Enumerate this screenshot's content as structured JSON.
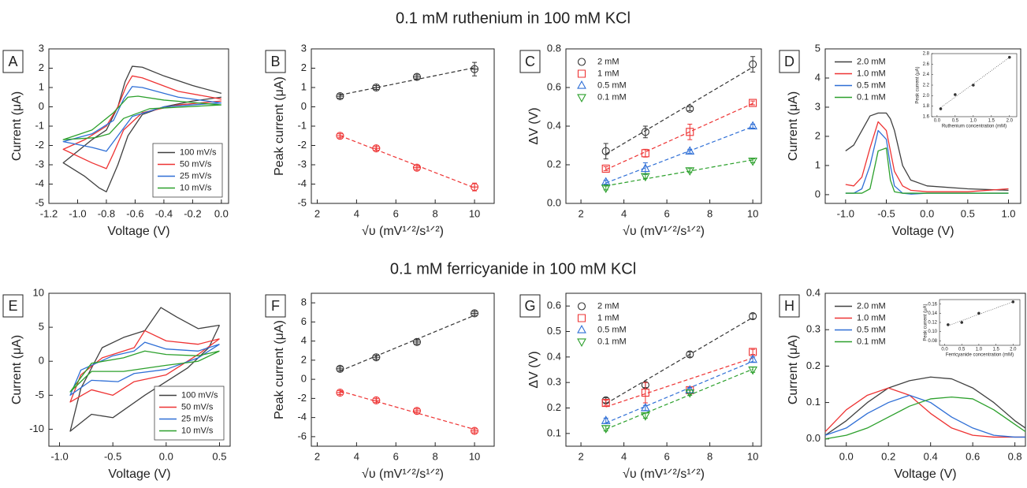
{
  "headings": [
    "0.1 mM ruthenium in 100 mM KCl",
    "0.1 mM ferricyanide in 100 mM KCl"
  ],
  "chart_data": [
    {
      "type": "line",
      "panel_label": "A",
      "x_label": "Voltage (V)",
      "y_label": "Current (μA)",
      "xlim": [
        -1.2,
        0.05
      ],
      "xticks": [
        -1.2,
        {
          "value": -1,
          "label": "-1.0"
        },
        -0.8,
        -0.6,
        -0.4,
        -0.2,
        {
          "value": 0,
          "label": "0.0"
        }
      ],
      "ylim": [
        -5,
        3
      ],
      "yticks": [
        -5,
        -4,
        -3,
        -2,
        -1,
        0,
        1,
        2,
        3
      ],
      "legend": "lower right",
      "legend_box": true,
      "series": [
        {
          "name": "100 mV/s",
          "color": "#404040",
          "x": [
            0,
            -0.2,
            -0.4,
            -0.55,
            -0.65,
            -0.72,
            -0.8,
            -0.85,
            -0.95,
            -1.1,
            -1.0,
            -0.9,
            -0.8,
            -0.72,
            -0.67,
            -0.62,
            -0.55,
            -0.4,
            -0.2,
            0
          ],
          "values": [
            0.5,
            0.3,
            0,
            -0.4,
            -1.5,
            -3,
            -4.4,
            -4.2,
            -3.6,
            -2.9,
            -2.3,
            -1.7,
            -1.2,
            0,
            1.3,
            2.1,
            2.05,
            1.6,
            1.1,
            0.7
          ]
        },
        {
          "name": "50 mV/s",
          "color": "#ee3333",
          "x": [
            0,
            -0.3,
            -0.55,
            -0.68,
            -0.75,
            -0.8,
            -0.9,
            -1.1,
            -0.95,
            -0.8,
            -0.72,
            -0.66,
            -0.62,
            -0.55,
            -0.3,
            0
          ],
          "values": [
            0.3,
            0.1,
            -0.3,
            -1.2,
            -2.4,
            -3.2,
            -2.9,
            -2.2,
            -1.7,
            -1.0,
            0,
            1.1,
            1.6,
            1.5,
            0.8,
            0.4
          ]
        },
        {
          "name": "25 mV/s",
          "color": "#2f6fd6",
          "x": [
            0,
            -0.4,
            -0.62,
            -0.72,
            -0.8,
            -0.9,
            -1.1,
            -0.9,
            -0.75,
            -0.68,
            -0.62,
            -0.55,
            -0.3,
            0
          ],
          "values": [
            0.2,
            0,
            -0.5,
            -1.5,
            -2.3,
            -2.1,
            -1.8,
            -1.4,
            -0.7,
            0.4,
            1.05,
            1.0,
            0.5,
            0.2
          ]
        },
        {
          "name": "10 mV/s",
          "color": "#2ca02c",
          "x": [
            0,
            -0.5,
            -0.68,
            -0.78,
            -0.88,
            -1.1,
            -0.9,
            -0.75,
            -0.65,
            -0.58,
            -0.4,
            0
          ],
          "values": [
            0.1,
            -0.1,
            -0.6,
            -1.4,
            -1.6,
            -1.7,
            -1.2,
            -0.3,
            0.5,
            0.55,
            0.35,
            0.1
          ]
        }
      ]
    },
    {
      "type": "scatter",
      "panel_label": "B",
      "x_label": "√υ (mV¹ᐟ²/s¹ᐟ²)",
      "y_label": "Peak current (μA)",
      "xlim": [
        1.7,
        11
      ],
      "xticks": [
        2,
        4,
        6,
        8,
        10
      ],
      "ylim": [
        -5,
        3
      ],
      "yticks": [
        -5,
        -4,
        -3,
        -2,
        -1,
        0,
        1,
        2,
        3
      ],
      "x": [
        3.16,
        5,
        7.07,
        10
      ],
      "fit": "dashed",
      "series": [
        {
          "color": "#333333",
          "marker": "circle-cross",
          "values": [
            0.55,
            1.0,
            1.55,
            1.95
          ],
          "errors": [
            0.1,
            0.1,
            0.1,
            0.35
          ]
        },
        {
          "color": "#ee3333",
          "marker": "circle-cross",
          "values": [
            -1.5,
            -2.15,
            -3.15,
            -4.15
          ],
          "errors": [
            0.1,
            0.1,
            0.1,
            0.2
          ]
        }
      ]
    },
    {
      "type": "scatter",
      "panel_label": "C",
      "x_label": "√υ (mV¹ᐟ²/s¹ᐟ²)",
      "y_label": "ΔV (V)",
      "xlim": [
        1.3,
        10.4
      ],
      "xticks": [
        2,
        4,
        6,
        8,
        10
      ],
      "ylim": [
        0,
        0.8
      ],
      "yticks": [
        {
          "value": 0,
          "label": "0.0"
        },
        0.2,
        0.4,
        0.6,
        0.8
      ],
      "x": [
        3.16,
        5,
        7.07,
        10
      ],
      "fit": "dashed",
      "legend": "upper left",
      "series": [
        {
          "name": "2 mM",
          "color": "#333333",
          "marker": "circle",
          "values": [
            0.27,
            0.37,
            0.49,
            0.72
          ],
          "errors": [
            0.04,
            0.03,
            0.01,
            0.04
          ]
        },
        {
          "name": "1 mM",
          "color": "#ee3333",
          "marker": "square",
          "values": [
            0.18,
            0.26,
            0.37,
            0.52
          ],
          "errors": [
            0.01,
            0.02,
            0.04,
            0.01
          ]
        },
        {
          "name": "0.5 mM",
          "color": "#2f6fd6",
          "marker": "triangle",
          "values": [
            0.11,
            0.18,
            0.27,
            0.4
          ],
          "errors": [
            0.01,
            0.03,
            0.01,
            0.01
          ]
        },
        {
          "name": "0.1 mM",
          "color": "#2ca02c",
          "marker": "triangle-down",
          "values": [
            0.08,
            0.14,
            0.17,
            0.22
          ],
          "errors": [
            0.01,
            0.01,
            0.01,
            0.01
          ]
        }
      ]
    },
    {
      "type": "line",
      "panel_label": "D",
      "x_label": "Voltage (V)",
      "y_label": "Current (μA)",
      "xlim": [
        -1.25,
        1.15
      ],
      "xticks": [
        {
          "value": -1,
          "label": "-1.0"
        },
        -0.5,
        {
          "value": 0,
          "label": "0.0"
        },
        0.5,
        {
          "value": 1,
          "label": "1.0"
        }
      ],
      "ylim": [
        -0.3,
        5
      ],
      "yticks": [
        0,
        1,
        2,
        3,
        4,
        5
      ],
      "legend": "upper left",
      "x": [
        -1.0,
        -0.9,
        -0.8,
        -0.7,
        -0.6,
        -0.5,
        -0.45,
        -0.4,
        -0.3,
        -0.2,
        0,
        0.5,
        1.0
      ],
      "series": [
        {
          "name": "2.0 mM",
          "color": "#404040",
          "values": [
            1.5,
            1.7,
            2.2,
            2.7,
            2.8,
            2.8,
            2.6,
            2.2,
            1.0,
            0.5,
            0.3,
            0.2,
            0.15
          ]
        },
        {
          "name": "1.0 mM",
          "color": "#ee3333",
          "values": [
            0.35,
            0.3,
            0.6,
            1.6,
            2.5,
            2.2,
            1.5,
            0.8,
            0.3,
            0.15,
            0.1,
            0.1,
            0.2
          ]
        },
        {
          "name": "0.5 mM",
          "color": "#2f6fd6",
          "values": [
            0.05,
            0.05,
            0.2,
            1.0,
            2.2,
            1.9,
            1.0,
            0.3,
            0.05,
            0.02,
            0.05,
            0.05,
            0.05
          ]
        },
        {
          "name": "0.1 mM",
          "color": "#2ca02c",
          "values": [
            0.05,
            0.05,
            0.05,
            0.2,
            1.5,
            1.6,
            0.5,
            0.1,
            0.05,
            0.05,
            0.05,
            0.05,
            0.05
          ]
        }
      ],
      "inset": {
        "type": "scatter",
        "x_label": "Ruthenium concentration (mM)",
        "y_label": "Peak current (μA)",
        "xlim": [
          -0.15,
          2.2
        ],
        "xticks": [
          {
            "value": 0,
            "label": "0.0"
          },
          0.5,
          {
            "value": 1,
            "label": "1.0"
          },
          1.5,
          {
            "value": 2,
            "label": "2.0"
          }
        ],
        "ylim": [
          1.6,
          2.8
        ],
        "yticks": [
          1.6,
          1.8,
          {
            "value": 2,
            "label": "2.0"
          },
          2.2,
          2.4,
          2.6,
          2.8
        ],
        "x": [
          0.1,
          0.5,
          1.0,
          2.0
        ],
        "fit": "dotted",
        "series": [
          {
            "color": "#333333",
            "marker": "circle",
            "values": [
              1.75,
              2.02,
              2.2,
              2.73
            ]
          }
        ]
      }
    },
    {
      "type": "line",
      "panel_label": "E",
      "x_label": "Voltage (V)",
      "y_label": "Current (μA)",
      "xlim": [
        -1.1,
        0.6
      ],
      "xticks": [
        {
          "value": -1,
          "label": "-1.0"
        },
        -0.5,
        {
          "value": 0,
          "label": "0.0"
        },
        0.5
      ],
      "ylim": [
        -12.5,
        10
      ],
      "yticks": [
        -10,
        -5,
        0,
        5,
        10
      ],
      "legend": "lower right",
      "legend_box": true,
      "series": [
        {
          "name": "100 mV/s",
          "color": "#404040",
          "x": [
            0.5,
            0.4,
            0.2,
            0,
            -0.2,
            -0.5,
            -0.7,
            -0.9,
            -0.8,
            -0.6,
            -0.4,
            -0.2,
            -0.05,
            0.1,
            0.3,
            0.5
          ],
          "values": [
            5.3,
            2.0,
            -1.0,
            -3,
            -5,
            -8.3,
            -7.8,
            -10.3,
            -4,
            2,
            3.5,
            4.5,
            7.9,
            6.5,
            4.8,
            5.3
          ]
        },
        {
          "name": "50 mV/s",
          "color": "#ee3333",
          "x": [
            0.5,
            0.3,
            0,
            -0.3,
            -0.5,
            -0.7,
            -0.9,
            -0.8,
            -0.6,
            -0.3,
            -0.2,
            0,
            0.3,
            0.5
          ],
          "values": [
            3.3,
            1.0,
            -2,
            -3,
            -5,
            -4.2,
            -6,
            -2,
            0.5,
            2,
            4.5,
            3,
            2.5,
            3.3
          ]
        },
        {
          "name": "25 mV/s",
          "color": "#2f6fd6",
          "x": [
            0.5,
            0.3,
            0,
            -0.3,
            -0.45,
            -0.7,
            -0.9,
            -0.8,
            -0.5,
            -0.3,
            -0.2,
            0,
            0.3,
            0.5
          ],
          "values": [
            2.5,
            0.5,
            -1.2,
            -1.8,
            -3,
            -2.8,
            -5,
            -1.3,
            0.8,
            1.5,
            2.8,
            1.8,
            1.5,
            2.5
          ]
        },
        {
          "name": "10 mV/s",
          "color": "#2ca02c",
          "x": [
            0.5,
            0.3,
            0,
            -0.4,
            -0.7,
            -0.9,
            -0.7,
            -0.4,
            -0.2,
            0,
            0.3,
            0.5
          ],
          "values": [
            1.5,
            0,
            -0.6,
            -1.5,
            -1.5,
            -4.5,
            -0.3,
            0.5,
            1.5,
            1,
            0.8,
            1.5
          ]
        }
      ]
    },
    {
      "type": "scatter",
      "panel_label": "F",
      "x_label": "√υ (mV¹ᐟ²/s¹ᐟ²)",
      "y_label": "Peak current (μA)",
      "xlim": [
        1.7,
        11
      ],
      "xticks": [
        2,
        4,
        6,
        8,
        10
      ],
      "ylim": [
        -7,
        9
      ],
      "yticks": [
        -6,
        -4,
        -2,
        0,
        2,
        4,
        6,
        8
      ],
      "x": [
        3.16,
        5,
        7.07,
        10
      ],
      "fit": "dashed",
      "series": [
        {
          "color": "#333333",
          "marker": "circle-cross",
          "values": [
            1.1,
            2.3,
            3.9,
            6.9
          ],
          "errors": [
            0.2,
            0.2,
            0.2,
            0.2
          ]
        },
        {
          "color": "#ee3333",
          "marker": "circle-cross",
          "values": [
            -1.4,
            -2.2,
            -3.3,
            -5.4
          ],
          "errors": [
            0.2,
            0.2,
            0.2,
            0.2
          ]
        }
      ]
    },
    {
      "type": "scatter",
      "panel_label": "G",
      "x_label": "√υ (mV¹ᐟ²/s¹ᐟ²)",
      "y_label": "ΔV (V)",
      "xlim": [
        1.3,
        10.4
      ],
      "xticks": [
        2,
        4,
        6,
        8,
        10
      ],
      "ylim": [
        0.05,
        0.65
      ],
      "yticks": [
        0.1,
        0.2,
        0.3,
        0.4,
        0.5,
        0.6
      ],
      "x": [
        3.16,
        5,
        7.07,
        10
      ],
      "fit": "dashed",
      "legend": "upper left",
      "series": [
        {
          "name": "2 mM",
          "color": "#333333",
          "marker": "circle",
          "values": [
            0.23,
            0.29,
            0.41,
            0.56
          ],
          "errors": [
            0.01,
            0.01,
            0.01,
            0.01
          ]
        },
        {
          "name": "1 mM",
          "color": "#ee3333",
          "marker": "square",
          "values": [
            0.22,
            0.26,
            0.27,
            0.42
          ],
          "errors": [
            0.01,
            0.04,
            0.01,
            0.01
          ]
        },
        {
          "name": "0.5 mM",
          "color": "#2f6fd6",
          "marker": "triangle",
          "values": [
            0.15,
            0.2,
            0.27,
            0.39
          ],
          "errors": [
            0.01,
            0.01,
            0.01,
            0.01
          ]
        },
        {
          "name": "0.1 mM",
          "color": "#2ca02c",
          "marker": "triangle-down",
          "values": [
            0.12,
            0.17,
            0.26,
            0.35
          ],
          "errors": [
            0.01,
            0.01,
            0.01,
            0.01
          ]
        }
      ]
    },
    {
      "type": "line",
      "panel_label": "H",
      "x_label": "Voltage (V)",
      "y_label": "Current (μA)",
      "xlim": [
        -0.1,
        0.85
      ],
      "xticks": [
        {
          "value": 0,
          "label": "0.0"
        },
        0.2,
        0.4,
        0.6,
        0.8
      ],
      "ylim": [
        -0.02,
        0.4
      ],
      "yticks": [
        {
          "value": 0,
          "label": "0.0"
        },
        0.1,
        0.2,
        0.3,
        0.4
      ],
      "legend": "upper left",
      "x": [
        -0.1,
        0,
        0.1,
        0.2,
        0.3,
        0.4,
        0.5,
        0.6,
        0.7,
        0.8,
        0.85
      ],
      "series": [
        {
          "name": "2.0 mM",
          "color": "#404040",
          "values": [
            0.01,
            0.05,
            0.1,
            0.14,
            0.16,
            0.17,
            0.165,
            0.14,
            0.1,
            0.05,
            0.03
          ]
        },
        {
          "name": "1.0 mM",
          "color": "#ee3333",
          "values": [
            0.02,
            0.08,
            0.12,
            0.14,
            0.12,
            0.07,
            0.03,
            0.01,
            0.005,
            0.005,
            0.005
          ]
        },
        {
          "name": "0.5 mM",
          "color": "#2f6fd6",
          "values": [
            0.01,
            0.03,
            0.07,
            0.1,
            0.12,
            0.1,
            0.06,
            0.03,
            0.01,
            0.005,
            0.005
          ]
        },
        {
          "name": "0.1 mM",
          "color": "#2ca02c",
          "values": [
            0,
            0.01,
            0.03,
            0.06,
            0.09,
            0.11,
            0.115,
            0.11,
            0.08,
            0.04,
            0.02
          ]
        }
      ],
      "inset": {
        "type": "scatter",
        "x_label": "Ferricyanide concentration (mM)",
        "y_label": "Peak current (μA)",
        "xlim": [
          -0.15,
          2.2
        ],
        "xticks": [
          {
            "value": 0,
            "label": "0.0"
          },
          0.5,
          {
            "value": 1,
            "label": "1.0"
          },
          1.5,
          {
            "value": 2,
            "label": "2.0"
          }
        ],
        "ylim": [
          0.07,
          0.17
        ],
        "yticks": [
          0.08,
          {
            "value": 0.1,
            "label": "0.10"
          },
          0.12,
          0.14,
          0.16
        ],
        "x": [
          0.1,
          0.5,
          1.0,
          2.0
        ],
        "fit": "dotted",
        "series": [
          {
            "color": "#333333",
            "marker": "circle",
            "values": [
              0.115,
              0.12,
              0.14,
              0.165
            ]
          }
        ]
      }
    }
  ]
}
